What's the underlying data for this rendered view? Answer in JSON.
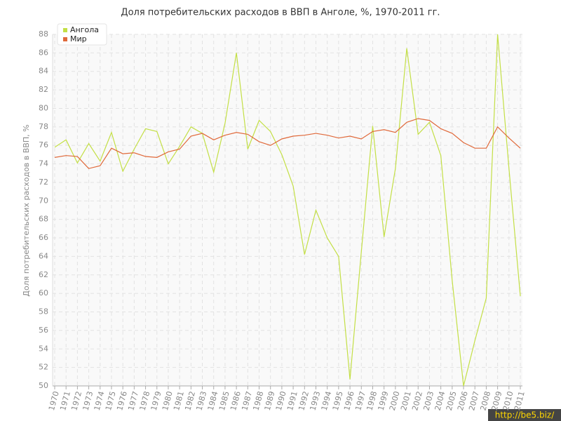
{
  "chart_data": {
    "type": "line",
    "title": "Доля потребительских расходов в ВВП в Анголе, %, 1970-2011 гг.",
    "y_label": "Доля потребительских расходов в ВВП, %",
    "categories": [
      "1970",
      "1971",
      "1972",
      "1973",
      "1974",
      "1975",
      "1976",
      "1977",
      "1978",
      "1979",
      "1980",
      "1981",
      "1982",
      "1983",
      "1984",
      "1985",
      "1986",
      "1987",
      "1988",
      "1989",
      "1990",
      "1991",
      "1992",
      "1993",
      "1994",
      "1995",
      "1996",
      "1997",
      "1998",
      "1999",
      "2000",
      "2001",
      "2002",
      "2003",
      "2004",
      "2005",
      "2006",
      "2007",
      "2008",
      "2009",
      "2010",
      "2011"
    ],
    "series": [
      {
        "name": "Ангола",
        "color": "#c3df45",
        "values": [
          75.8,
          76.6,
          74.1,
          76.2,
          74.3,
          77.4,
          73.2,
          75.6,
          77.8,
          77.5,
          74.0,
          75.9,
          78.0,
          77.3,
          73.1,
          78.4,
          86.0,
          75.6,
          78.7,
          77.5,
          75.0,
          71.6,
          64.2,
          69.0,
          66.0,
          64.0,
          50.7,
          64.5,
          78.1,
          66.1,
          73.5,
          86.5,
          77.2,
          78.5,
          74.9,
          61.4,
          50.0,
          54.9,
          59.5,
          88.0,
          73.5,
          59.7
        ]
      },
      {
        "name": "Мир",
        "color": "#e0693a",
        "values": [
          74.7,
          74.9,
          74.8,
          73.5,
          73.8,
          75.7,
          75.1,
          75.2,
          74.8,
          74.7,
          75.3,
          75.6,
          77.0,
          77.3,
          76.6,
          77.1,
          77.4,
          77.2,
          76.4,
          76.0,
          76.7,
          77.0,
          77.1,
          77.3,
          77.1,
          76.8,
          77.0,
          76.7,
          77.5,
          77.7,
          77.4,
          78.5,
          78.9,
          78.7,
          77.8,
          77.3,
          76.3,
          75.7,
          75.7,
          78.0,
          76.8,
          75.7
        ]
      }
    ],
    "ylim": [
      50,
      88
    ],
    "yticks": [
      50,
      52,
      54,
      56,
      58,
      60,
      62,
      64,
      66,
      68,
      70,
      72,
      74,
      76,
      78,
      80,
      82,
      84,
      86,
      88
    ],
    "grid": true,
    "legend": "top-left",
    "watermark": "http://be5.biz/"
  }
}
